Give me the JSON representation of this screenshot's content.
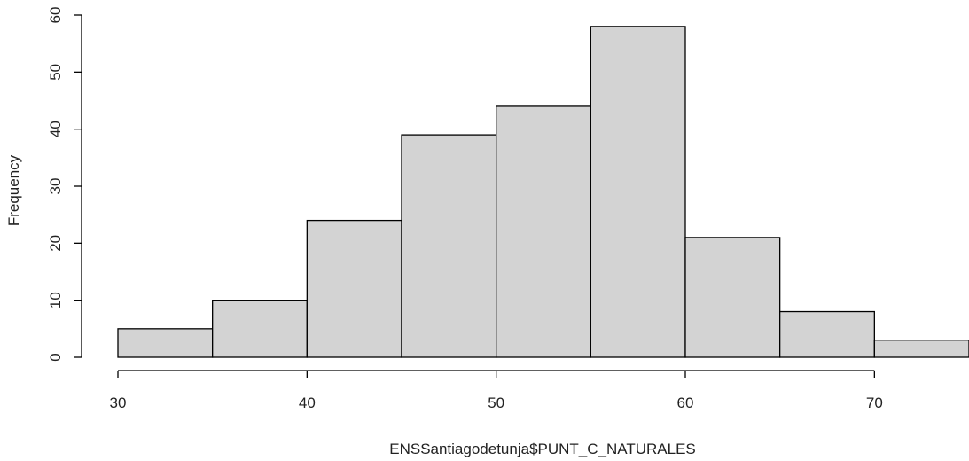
{
  "chart_data": {
    "type": "bar",
    "variant": "histogram",
    "bins": [
      {
        "x0": 30,
        "x1": 35,
        "count": 5
      },
      {
        "x0": 35,
        "x1": 40,
        "count": 10
      },
      {
        "x0": 40,
        "x1": 45,
        "count": 24
      },
      {
        "x0": 45,
        "x1": 50,
        "count": 39
      },
      {
        "x0": 50,
        "x1": 55,
        "count": 44
      },
      {
        "x0": 55,
        "x1": 60,
        "count": 58
      },
      {
        "x0": 60,
        "x1": 65,
        "count": 21
      },
      {
        "x0": 65,
        "x1": 70,
        "count": 8
      },
      {
        "x0": 70,
        "x1": 75,
        "count": 3
      }
    ],
    "title": "",
    "xlabel": "ENSSantiagodetunja$PUNT_C_NATURALES",
    "ylabel": "Frequency",
    "x_ticks": [
      30,
      40,
      50,
      60,
      70
    ],
    "y_ticks": [
      0,
      10,
      20,
      30,
      40,
      50,
      60
    ],
    "xlim": [
      30,
      75
    ],
    "ylim": [
      0,
      60
    ],
    "bar_color": "#d3d3d3",
    "edge_color": "#000000",
    "grid": false,
    "legend": "none"
  }
}
